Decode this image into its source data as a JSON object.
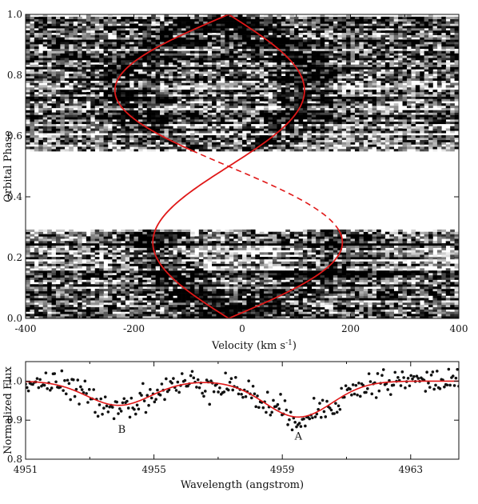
{
  "chart_data": [
    {
      "type": "heatmap",
      "xlabel": "Velocity (km s",
      "xlabel_sup": "-1",
      "xlabel_end": ")",
      "ylabel": "Orbital Phase",
      "xlim": [
        -400,
        400
      ],
      "ylim": [
        0.0,
        1.0
      ],
      "xticks": [
        -400,
        -200,
        0,
        200,
        400
      ],
      "yticks": [
        0.0,
        0.2,
        0.4,
        0.6,
        0.8,
        1.0
      ],
      "xtick_labels": [
        "-400",
        "-200",
        "0",
        "200",
        "400"
      ],
      "ytick_labels": [
        "0.0",
        "0.2",
        "0.4",
        "0.6",
        "0.8",
        "1.0"
      ],
      "observed_phase_ranges": [
        [
          0.0,
          0.29
        ],
        [
          0.55,
          1.0
        ]
      ],
      "overlay_curves": [
        {
          "component": "primary",
          "gamma": -25,
          "K": 140,
          "phase_zero": 0.0,
          "style": "solid",
          "color": "#e01818"
        },
        {
          "component": "secondary",
          "gamma": -25,
          "K": 210,
          "phase_zero": 0.0,
          "style": "dashed-unobserved",
          "color": "#e01818"
        }
      ],
      "colormap": "grayscale"
    },
    {
      "type": "scatter",
      "xlabel": "Wavelength (angstrom)",
      "ylabel": "Normalized Flux",
      "xlim": [
        4951,
        4964.5
      ],
      "ylim": [
        0.8,
        1.05
      ],
      "xticks": [
        4951,
        4955,
        4959,
        4963
      ],
      "yticks": [
        0.8,
        0.9,
        1.0
      ],
      "xtick_labels": [
        "4951",
        "4955",
        "4959",
        "4963"
      ],
      "ytick_labels": [
        "0.8",
        "0.9",
        "1.0"
      ],
      "model_fit": {
        "continuum": 1.0,
        "color": "#e01818",
        "lines": [
          {
            "label": "B",
            "center": 4953.9,
            "depth": 0.062,
            "sigma": 1.0
          },
          {
            "label": "A",
            "center": 4959.5,
            "depth": 0.092,
            "sigma": 1.05
          }
        ]
      },
      "annotations": [
        {
          "text": "B",
          "x": 4954.0,
          "y": 0.868
        },
        {
          "text": "A",
          "x": 4959.5,
          "y": 0.85
        }
      ],
      "noise_sigma": 0.018
    }
  ]
}
